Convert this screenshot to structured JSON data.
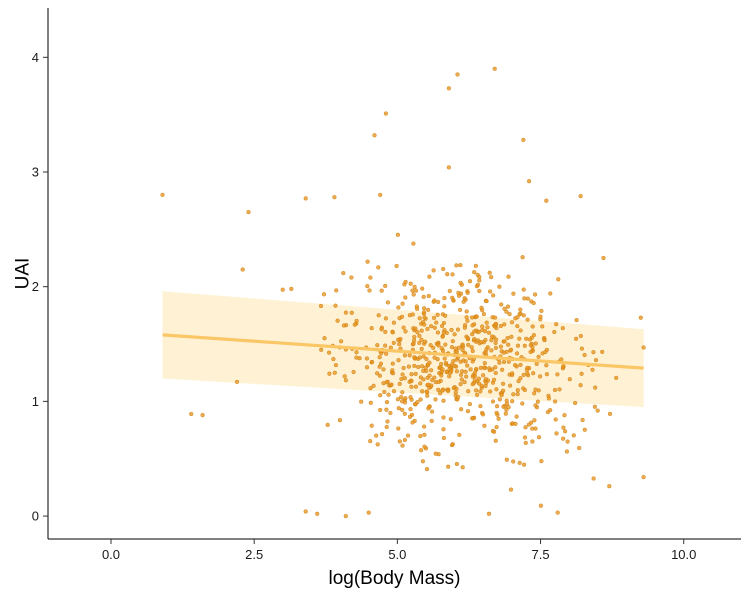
{
  "chart_data": {
    "type": "scatter",
    "xlabel": "log(Body Mass)",
    "ylabel": "UAI",
    "xlim": [
      -1.1,
      11.0
    ],
    "ylim": [
      -0.2,
      4.43
    ],
    "xticks": [
      0,
      2.5,
      5,
      7.5,
      10
    ],
    "xtick_labels": [
      "0.0",
      "2.5",
      "5.0",
      "7.5",
      "10.0"
    ],
    "yticks": [
      0,
      1,
      2,
      3,
      4
    ],
    "ytick_labels": [
      "0",
      "1",
      "2",
      "3",
      "4"
    ],
    "grid": false,
    "legend": "none",
    "colors": {
      "points": "#e8951c",
      "trend_line": "#fbc766",
      "ribbon": "#fff0cc"
    },
    "trend": {
      "x": [
        0.9,
        9.3
      ],
      "y": [
        1.58,
        1.29
      ],
      "ci_lower": [
        1.2,
        0.95
      ],
      "ci_upper": [
        1.96,
        1.63
      ]
    },
    "points_seed": 7,
    "points_count": 720,
    "outliers": [
      [
        0.9,
        2.8
      ],
      [
        1.4,
        0.89
      ],
      [
        1.6,
        0.88
      ],
      [
        2.4,
        2.65
      ],
      [
        2.3,
        2.15
      ],
      [
        4.6,
        3.32
      ],
      [
        4.8,
        3.51
      ],
      [
        5.9,
        3.73
      ],
      [
        6.05,
        3.85
      ],
      [
        6.7,
        3.9
      ],
      [
        7.2,
        3.28
      ],
      [
        7.3,
        2.92
      ],
      [
        5.9,
        3.04
      ],
      [
        7.6,
        2.75
      ],
      [
        8.2,
        2.79
      ],
      [
        4.7,
        2.8
      ],
      [
        3.4,
        2.77
      ],
      [
        3.9,
        2.78
      ],
      [
        9.3,
        0.34
      ],
      [
        9.25,
        1.73
      ],
      [
        9.3,
        1.47
      ],
      [
        7.8,
        0.03
      ],
      [
        3.4,
        0.04
      ],
      [
        3.6,
        0.02
      ],
      [
        4.1,
        0.0
      ],
      [
        4.5,
        0.03
      ],
      [
        6.6,
        0.02
      ],
      [
        8.6,
        2.25
      ],
      [
        8.7,
        0.26
      ],
      [
        2.2,
        1.17
      ]
    ]
  }
}
